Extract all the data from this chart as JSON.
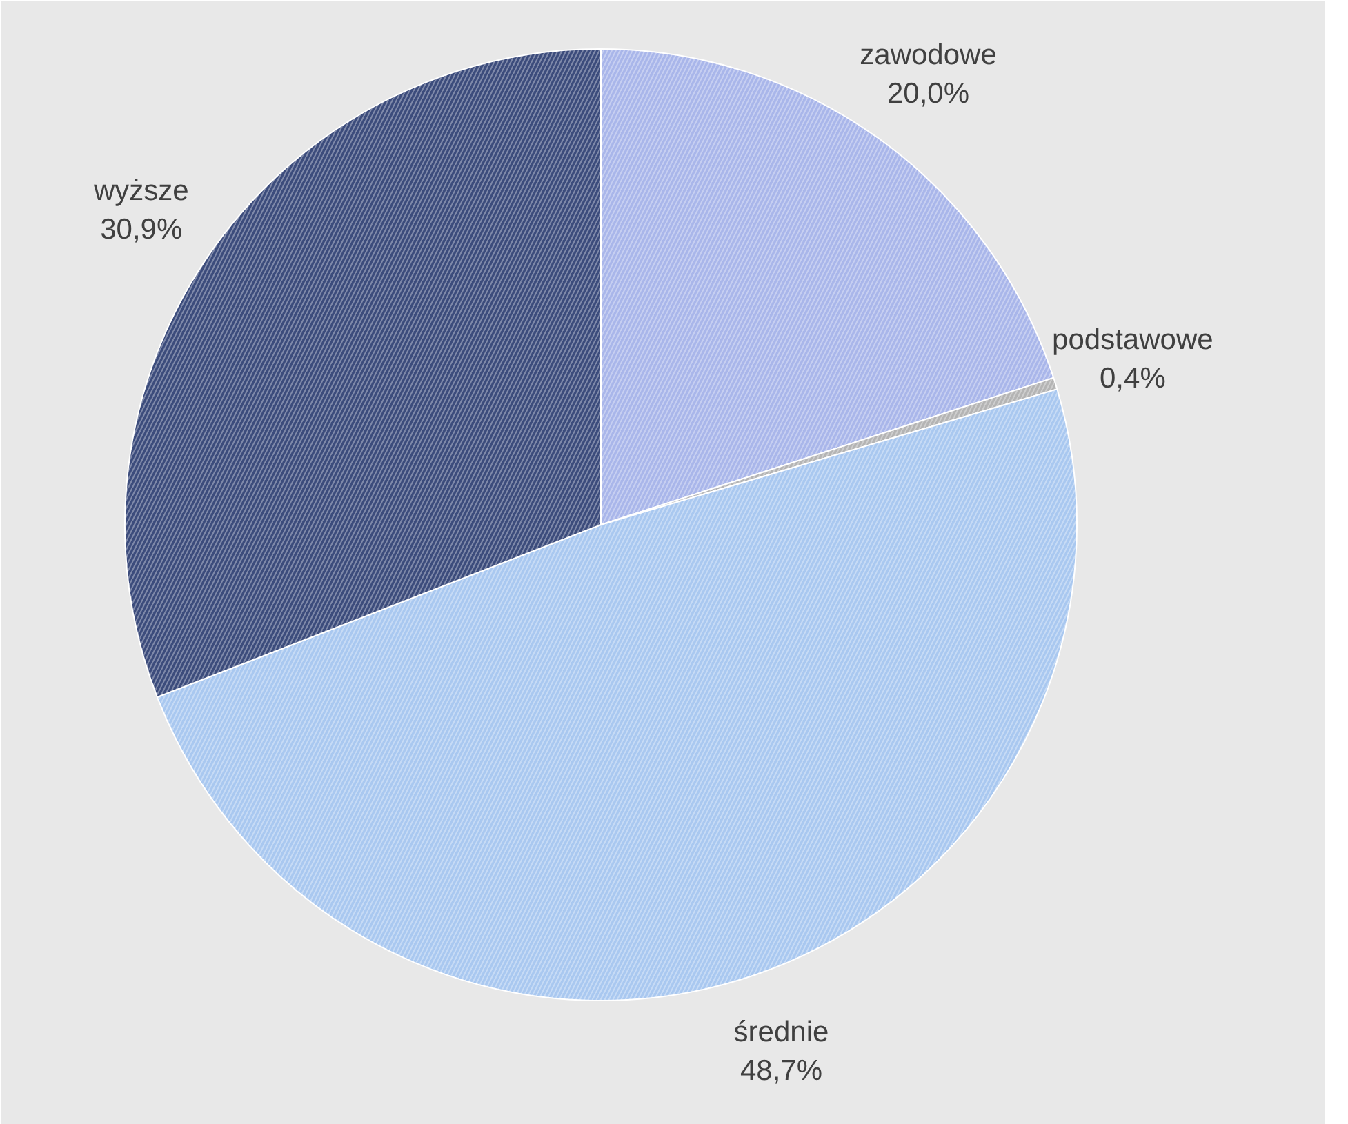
{
  "chart_data": {
    "type": "pie",
    "categories": [
      "zawodowe",
      "podstawowe",
      "średnie",
      "wyższe"
    ],
    "values": [
      20.0,
      0.4,
      48.7,
      30.9
    ],
    "value_labels": [
      "20,0%",
      "0,4%",
      "48,7%",
      "30,9%"
    ],
    "colors": [
      "#a9b6ea",
      "#b4b4b4",
      "#a9c8f0",
      "#3c4c7c"
    ]
  }
}
